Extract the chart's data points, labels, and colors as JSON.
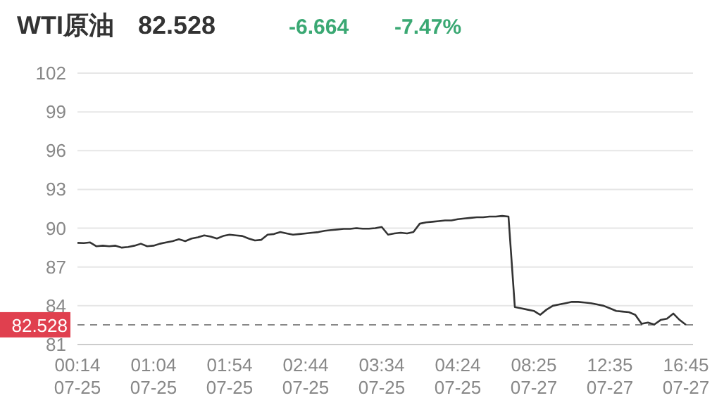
{
  "chart_data": {
    "type": "line",
    "title": "WTI原油",
    "annotations": [
      "82.528",
      "-6.664",
      "-7.47%"
    ],
    "categories": [
      "00:14\n07-25",
      null,
      null,
      null,
      null,
      null,
      null,
      null,
      null,
      null,
      null,
      null,
      "01:04\n07-25",
      null,
      null,
      null,
      null,
      null,
      null,
      null,
      null,
      null,
      null,
      null,
      "01:54\n07-25",
      null,
      null,
      null,
      null,
      null,
      null,
      null,
      null,
      null,
      null,
      null,
      "02:44\n07-25",
      null,
      null,
      null,
      null,
      null,
      null,
      null,
      null,
      null,
      null,
      null,
      "03:34\n07-25",
      null,
      null,
      null,
      null,
      null,
      null,
      null,
      null,
      null,
      null,
      null,
      "04:24\n07-25",
      null,
      null,
      null,
      null,
      null,
      null,
      null,
      null,
      null,
      null,
      null,
      "08:25\n07-27",
      null,
      null,
      null,
      null,
      null,
      null,
      null,
      null,
      null,
      null,
      null,
      "12:35\n07-27",
      null,
      null,
      null,
      null,
      null,
      null,
      null,
      null,
      null,
      null,
      null,
      "16:45\n07-27"
    ],
    "series": [
      {
        "color": "#333333",
        "values": [
          88.87,
          88.85,
          88.9,
          88.6,
          88.65,
          88.6,
          88.65,
          88.5,
          88.55,
          88.65,
          88.8,
          88.6,
          88.65,
          88.8,
          88.9,
          89.0,
          89.15,
          89.0,
          89.2,
          89.3,
          89.45,
          89.35,
          89.2,
          89.4,
          89.5,
          89.45,
          89.4,
          89.2,
          89.05,
          89.1,
          89.5,
          89.55,
          89.7,
          89.6,
          89.5,
          89.55,
          89.6,
          89.65,
          89.7,
          89.8,
          89.85,
          89.9,
          89.95,
          89.95,
          90.0,
          89.96,
          89.96,
          90.0,
          90.1,
          89.5,
          89.6,
          89.65,
          89.6,
          89.7,
          90.35,
          90.45,
          90.5,
          90.55,
          90.6,
          90.6,
          90.7,
          90.75,
          90.8,
          90.85,
          90.85,
          90.9,
          90.9,
          90.95,
          90.9,
          83.9,
          83.8,
          83.7,
          83.6,
          83.3,
          83.7,
          84.0,
          84.1,
          84.2,
          84.3,
          84.3,
          84.25,
          84.2,
          84.1,
          84.0,
          83.8,
          83.6,
          83.55,
          83.5,
          83.3,
          82.6,
          82.7,
          82.55,
          82.9,
          83.0,
          83.4,
          82.9,
          82.528
        ]
      }
    ],
    "ylim": [
      81,
      102
    ],
    "yticks": [
      81,
      84,
      87,
      90,
      93,
      96,
      99,
      102
    ],
    "grid": "y",
    "marker": "none",
    "line_style": "solid",
    "ref_lines": [
      {
        "axis": "y",
        "value": 82.528,
        "label": "82.528",
        "color": "#888888",
        "line_style": "dashed"
      }
    ]
  }
}
